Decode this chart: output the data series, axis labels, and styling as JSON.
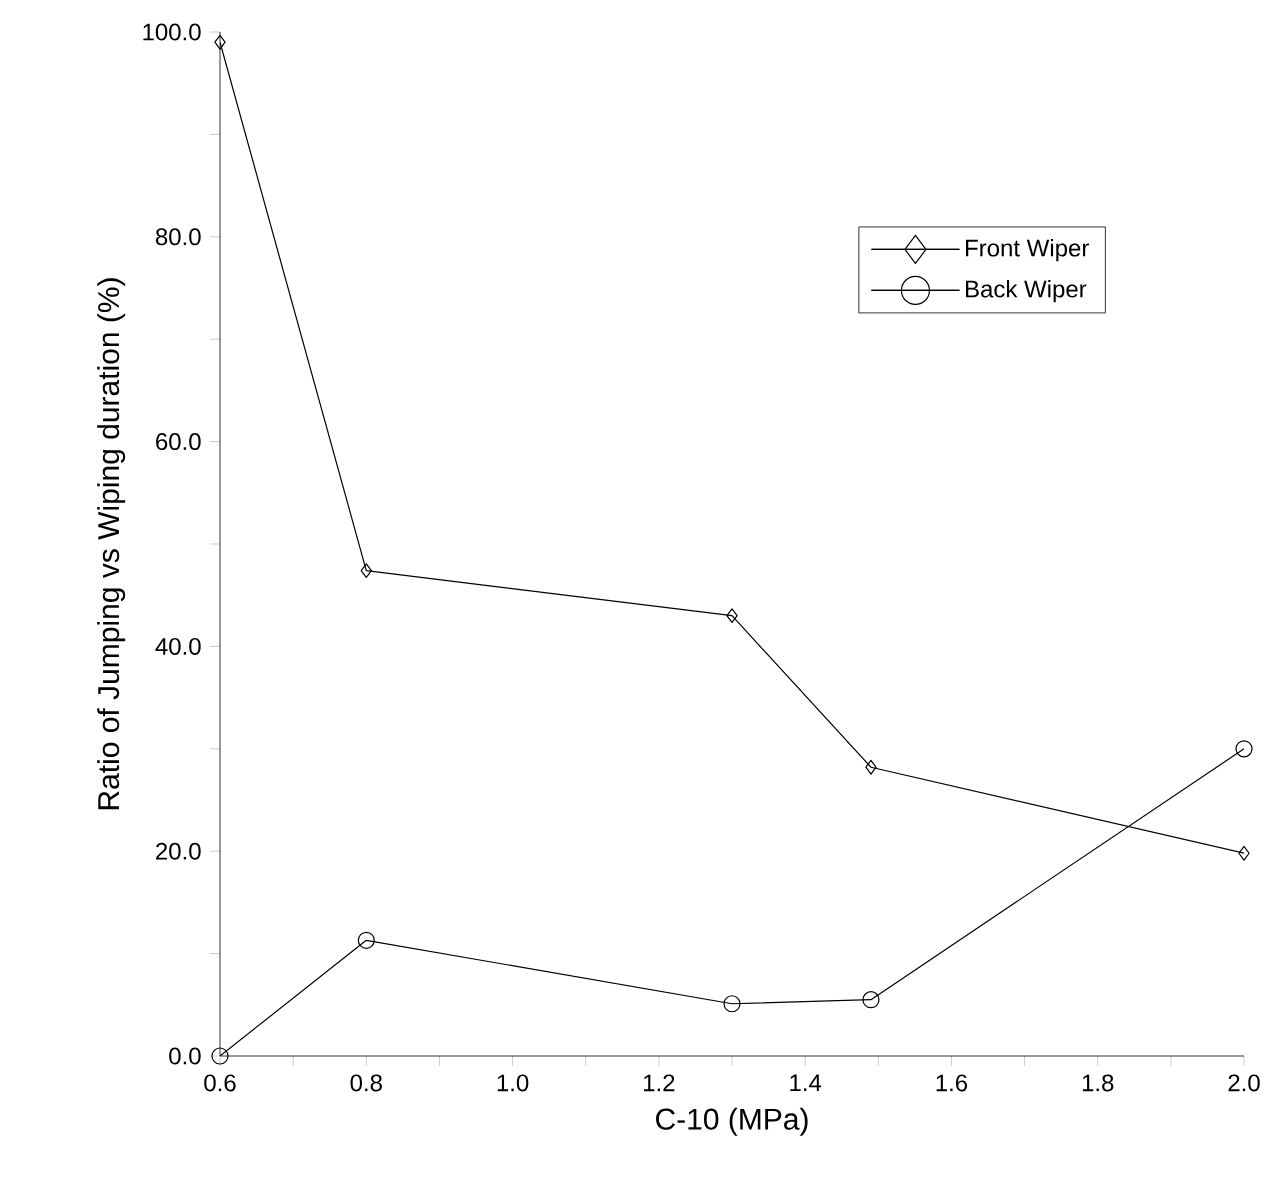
{
  "chart_data": {
    "type": "line",
    "xlabel": "C-10 (MPa)",
    "ylabel": "Ratio of Jumping vs Wiping duration (%)",
    "x": [
      0.6,
      0.8,
      1.3,
      1.49,
      2.0
    ],
    "series": [
      {
        "name": "Front Wiper",
        "color": "#000000",
        "marker": "diamond",
        "values": [
          99.0,
          47.4,
          43.0,
          28.2,
          19.8
        ]
      },
      {
        "name": "Back Wiper",
        "color": "#000000",
        "marker": "circle",
        "values": [
          0.0,
          11.3,
          5.1,
          5.5,
          30.0
        ]
      }
    ],
    "xlim": [
      0.6,
      2.0
    ],
    "ylim": [
      0,
      100
    ],
    "xticks": [
      0.6,
      {
        "value": 0.7,
        "label": null
      },
      0.8,
      {
        "value": 0.9,
        "label": null
      },
      {
        "value": 1.0,
        "label": "1.0"
      },
      {
        "value": 1.1,
        "label": null
      },
      1.2,
      {
        "value": 1.3,
        "label": null
      },
      1.4,
      {
        "value": 1.5,
        "label": null
      },
      1.6,
      {
        "value": 1.7,
        "label": null
      },
      1.8,
      {
        "value": 1.9,
        "label": null
      },
      {
        "value": 2.0,
        "label": "2.0"
      }
    ],
    "yticks": [
      {
        "value": 0,
        "label": "0.0"
      },
      {
        "value": 10,
        "label": null
      },
      {
        "value": 20,
        "label": "20.0"
      },
      {
        "value": 30,
        "label": null
      },
      {
        "value": 40,
        "label": "40.0"
      },
      {
        "value": 50,
        "label": null
      },
      {
        "value": 60,
        "label": "60.0"
      },
      {
        "value": 70,
        "label": null
      },
      {
        "value": 80,
        "label": "80.0"
      },
      {
        "value": 90,
        "label": null
      },
      {
        "value": 100,
        "label": "100.0"
      }
    ],
    "legend": "top right",
    "line_style": "solid",
    "grid": false
  }
}
